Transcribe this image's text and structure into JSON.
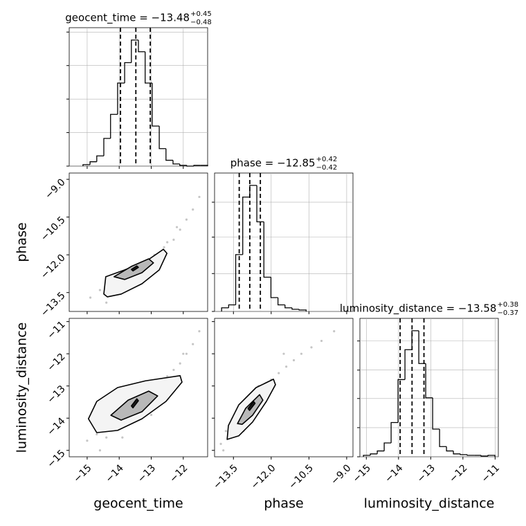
{
  "chart_data": {
    "type": "corner",
    "grid": true,
    "colors": {
      "hist": "#000000",
      "points": "#7f7f7f",
      "contour": "#000000",
      "grid": "#b0b0b0",
      "quantile": "#000000",
      "contour_fills": [
        "#f4f4f4",
        "#b8b8b8",
        "#1a1a1a"
      ]
    },
    "parameters": [
      {
        "name": "geocent_time",
        "title": "geocent_time = −13.48",
        "title_upper": "+0.45",
        "title_lower": "−0.48",
        "lim": [
          -15.56,
          -11.24
        ],
        "ticks": [
          {
            "value": -15,
            "label": "−15"
          },
          {
            "value": -14,
            "label": "−14"
          },
          {
            "value": -13,
            "label": "−13"
          },
          {
            "value": -12,
            "label": "−12"
          }
        ],
        "quantiles": [
          -13.96,
          -13.48,
          -13.03
        ],
        "bins": [
          -15.13,
          -14.91,
          -14.7,
          -14.48,
          -14.27,
          -14.05,
          -13.83,
          -13.62,
          -13.4,
          -13.19,
          -12.97,
          -12.75,
          -12.54,
          -12.32,
          -12.11,
          -11.89,
          -11.67,
          -11.46,
          -11.24
        ],
        "counts": [
          2,
          6,
          14,
          38,
          71,
          114,
          142,
          173,
          157,
          114,
          55,
          24,
          8,
          3,
          1,
          0,
          1,
          1
        ],
        "count_lim": [
          0,
          190
        ],
        "count_ticks": [
          0,
          46,
          92,
          138,
          184
        ]
      },
      {
        "name": "phase",
        "title": "phase = −12.85",
        "title_upper": "+0.42",
        "title_lower": "−0.42",
        "lim": [
          -14.25,
          -8.75
        ],
        "ticks": [
          {
            "value": -13.5,
            "label": "−13.5"
          },
          {
            "value": -12.0,
            "label": "−12.0"
          },
          {
            "value": -10.5,
            "label": "−10.5"
          },
          {
            "value": -9.0,
            "label": "−9.0"
          }
        ],
        "quantiles": [
          -13.27,
          -12.85,
          -12.43
        ],
        "bins": [
          -13.97,
          -13.69,
          -13.41,
          -13.13,
          -12.85,
          -12.57,
          -12.29,
          -12.01,
          -11.73,
          -11.45,
          -11.17,
          -10.89,
          -10.61
        ],
        "counts": [
          5,
          9,
          78,
          157,
          173,
          123,
          47,
          19,
          9,
          5,
          3,
          2
        ],
        "count_lim": [
          0,
          190
        ],
        "count_ticks": [
          0,
          52,
          102,
          150
        ]
      },
      {
        "name": "luminosity_distance",
        "title": "luminosity_distance = −13.58",
        "title_upper": "+0.38",
        "title_lower": "−0.37",
        "lim": [
          -15.2,
          -10.9
        ],
        "ticks": [
          {
            "value": -15,
            "label": "−15"
          },
          {
            "value": -14,
            "label": "−14"
          },
          {
            "value": -13,
            "label": "−13"
          },
          {
            "value": -12,
            "label": "−12"
          },
          {
            "value": -11,
            "label": "−11"
          }
        ],
        "quantiles": [
          -13.95,
          -13.58,
          -13.21
        ],
        "bins": [
          -15.09,
          -14.875,
          -14.66,
          -14.445,
          -14.23,
          -14.015,
          -13.8,
          -13.585,
          -13.37,
          -13.155,
          -12.94,
          -12.725,
          -12.51,
          -12.295,
          -12.08,
          -11.865,
          -11.65,
          -11.435,
          -11.22,
          -11.005
        ],
        "counts": [
          2,
          4,
          8,
          19,
          47,
          106,
          147,
          173,
          128,
          81,
          38,
          14,
          8,
          4,
          3,
          2,
          2,
          1,
          2
        ],
        "count_lim": [
          0,
          190
        ],
        "count_ticks": [
          0,
          40,
          80,
          119,
          159
        ]
      }
    ],
    "pairs": [
      {
        "x": [
          -14.9,
          -14.6,
          -14.3,
          -14.1,
          -13.9,
          -13.7,
          -13.5,
          -13.3,
          -13.1,
          -12.9,
          -12.7,
          -12.5,
          -12.3,
          -12.1,
          -11.9,
          -11.7,
          -11.5,
          -14.4,
          -13.8,
          -13.0,
          -12.6,
          -12.2
        ],
        "y": [
          -13.7,
          -13.4,
          -13.5,
          -13.0,
          -13.2,
          -12.7,
          -12.8,
          -12.3,
          -12.4,
          -12.0,
          -12.1,
          -11.5,
          -11.4,
          -11.0,
          -10.6,
          -10.2,
          -9.7,
          -13.9,
          -13.4,
          -12.8,
          -11.7,
          -10.9
        ],
        "contours": [
          {
            "x": [
              -14.48,
              -14.42,
              -13.83,
              -13.18,
              -12.62,
              -12.51,
              -12.75,
              -13.29,
              -13.94,
              -14.37
            ],
            "y": [
              -13.56,
              -12.87,
              -12.6,
              -12.27,
              -11.78,
              -11.94,
              -12.6,
              -13.15,
              -13.56,
              -13.67
            ]
          },
          {
            "x": [
              -14.16,
              -13.62,
              -13.08,
              -12.93,
              -13.29,
              -13.83
            ],
            "y": [
              -12.87,
              -12.46,
              -12.16,
              -12.32,
              -12.71,
              -12.98
            ]
          },
          {
            "x": [
              -13.62,
              -13.45,
              -13.4,
              -13.57
            ],
            "y": [
              -12.58,
              -12.44,
              -12.5,
              -12.64
            ]
          }
        ]
      },
      {
        "x": [
          -15.0,
          -14.7,
          -14.4,
          -14.2,
          -14.0,
          -13.8,
          -13.5,
          -13.3,
          -13.1,
          -12.9,
          -12.7,
          -12.5,
          -12.3,
          -12.1,
          -11.9,
          -11.7,
          -11.5,
          -14.6,
          -13.9,
          -13.0,
          -12.4,
          -12.0
        ],
        "y": [
          -14.7,
          -14.5,
          -14.6,
          -14.2,
          -14.3,
          -13.9,
          -13.9,
          -13.4,
          -13.6,
          -13.1,
          -13.0,
          -12.7,
          -12.5,
          -12.3,
          -12.0,
          -11.7,
          -11.3,
          -15.0,
          -14.6,
          -13.9,
          -12.9,
          -12.0
        ],
        "contours": [
          {
            "x": [
              -14.96,
              -14.7,
              -14.05,
              -13.18,
              -12.1,
              -12.04,
              -12.54,
              -13.29,
              -14.05,
              -14.7
            ],
            "y": [
              -14.02,
              -13.48,
              -13.05,
              -12.84,
              -12.68,
              -12.88,
              -13.48,
              -14.02,
              -14.38,
              -14.45
            ]
          },
          {
            "x": [
              -14.26,
              -13.72,
              -13.08,
              -12.8,
              -13.29,
              -13.94
            ],
            "y": [
              -13.91,
              -13.44,
              -13.16,
              -13.31,
              -13.8,
              -14.06
            ]
          },
          {
            "x": [
              -13.62,
              -13.45,
              -13.4,
              -13.57
            ],
            "y": [
              -13.62,
              -13.4,
              -13.46,
              -13.68
            ]
          }
        ]
      },
      {
        "x": [
          -14.0,
          -13.8,
          -13.6,
          -13.4,
          -13.2,
          -13.0,
          -12.8,
          -12.6,
          -12.4,
          -12.2,
          -12.0,
          -11.7,
          -11.4,
          -11.1,
          -10.8,
          -10.4,
          -10.0,
          -9.5,
          -13.9,
          -13.1,
          -12.5,
          -11.5
        ],
        "y": [
          -14.8,
          -14.4,
          -14.6,
          -14.0,
          -14.2,
          -13.7,
          -13.8,
          -13.3,
          -13.4,
          -13.0,
          -12.8,
          -12.6,
          -12.4,
          -12.2,
          -12.0,
          -11.8,
          -11.6,
          -11.3,
          -15.0,
          -14.4,
          -13.0,
          -12.0
        ],
        "contours": [
          {
            "x": [
              -13.75,
              -13.7,
              -13.29,
              -12.6,
              -11.91,
              -11.83,
              -12.19,
              -12.74,
              -13.29
            ],
            "y": [
              -14.66,
              -14.23,
              -13.59,
              -13.05,
              -12.79,
              -12.96,
              -13.48,
              -14.12,
              -14.55
            ]
          },
          {
            "x": [
              -13.34,
              -13.01,
              -12.46,
              -12.33,
              -12.74,
              -13.15
            ],
            "y": [
              -14.17,
              -13.69,
              -13.27,
              -13.44,
              -13.91,
              -14.19
            ]
          },
          {
            "x": [
              -12.92,
              -12.7,
              -12.64,
              -12.86
            ],
            "y": [
              -13.7,
              -13.48,
              -13.54,
              -13.76
            ]
          }
        ]
      }
    ]
  }
}
